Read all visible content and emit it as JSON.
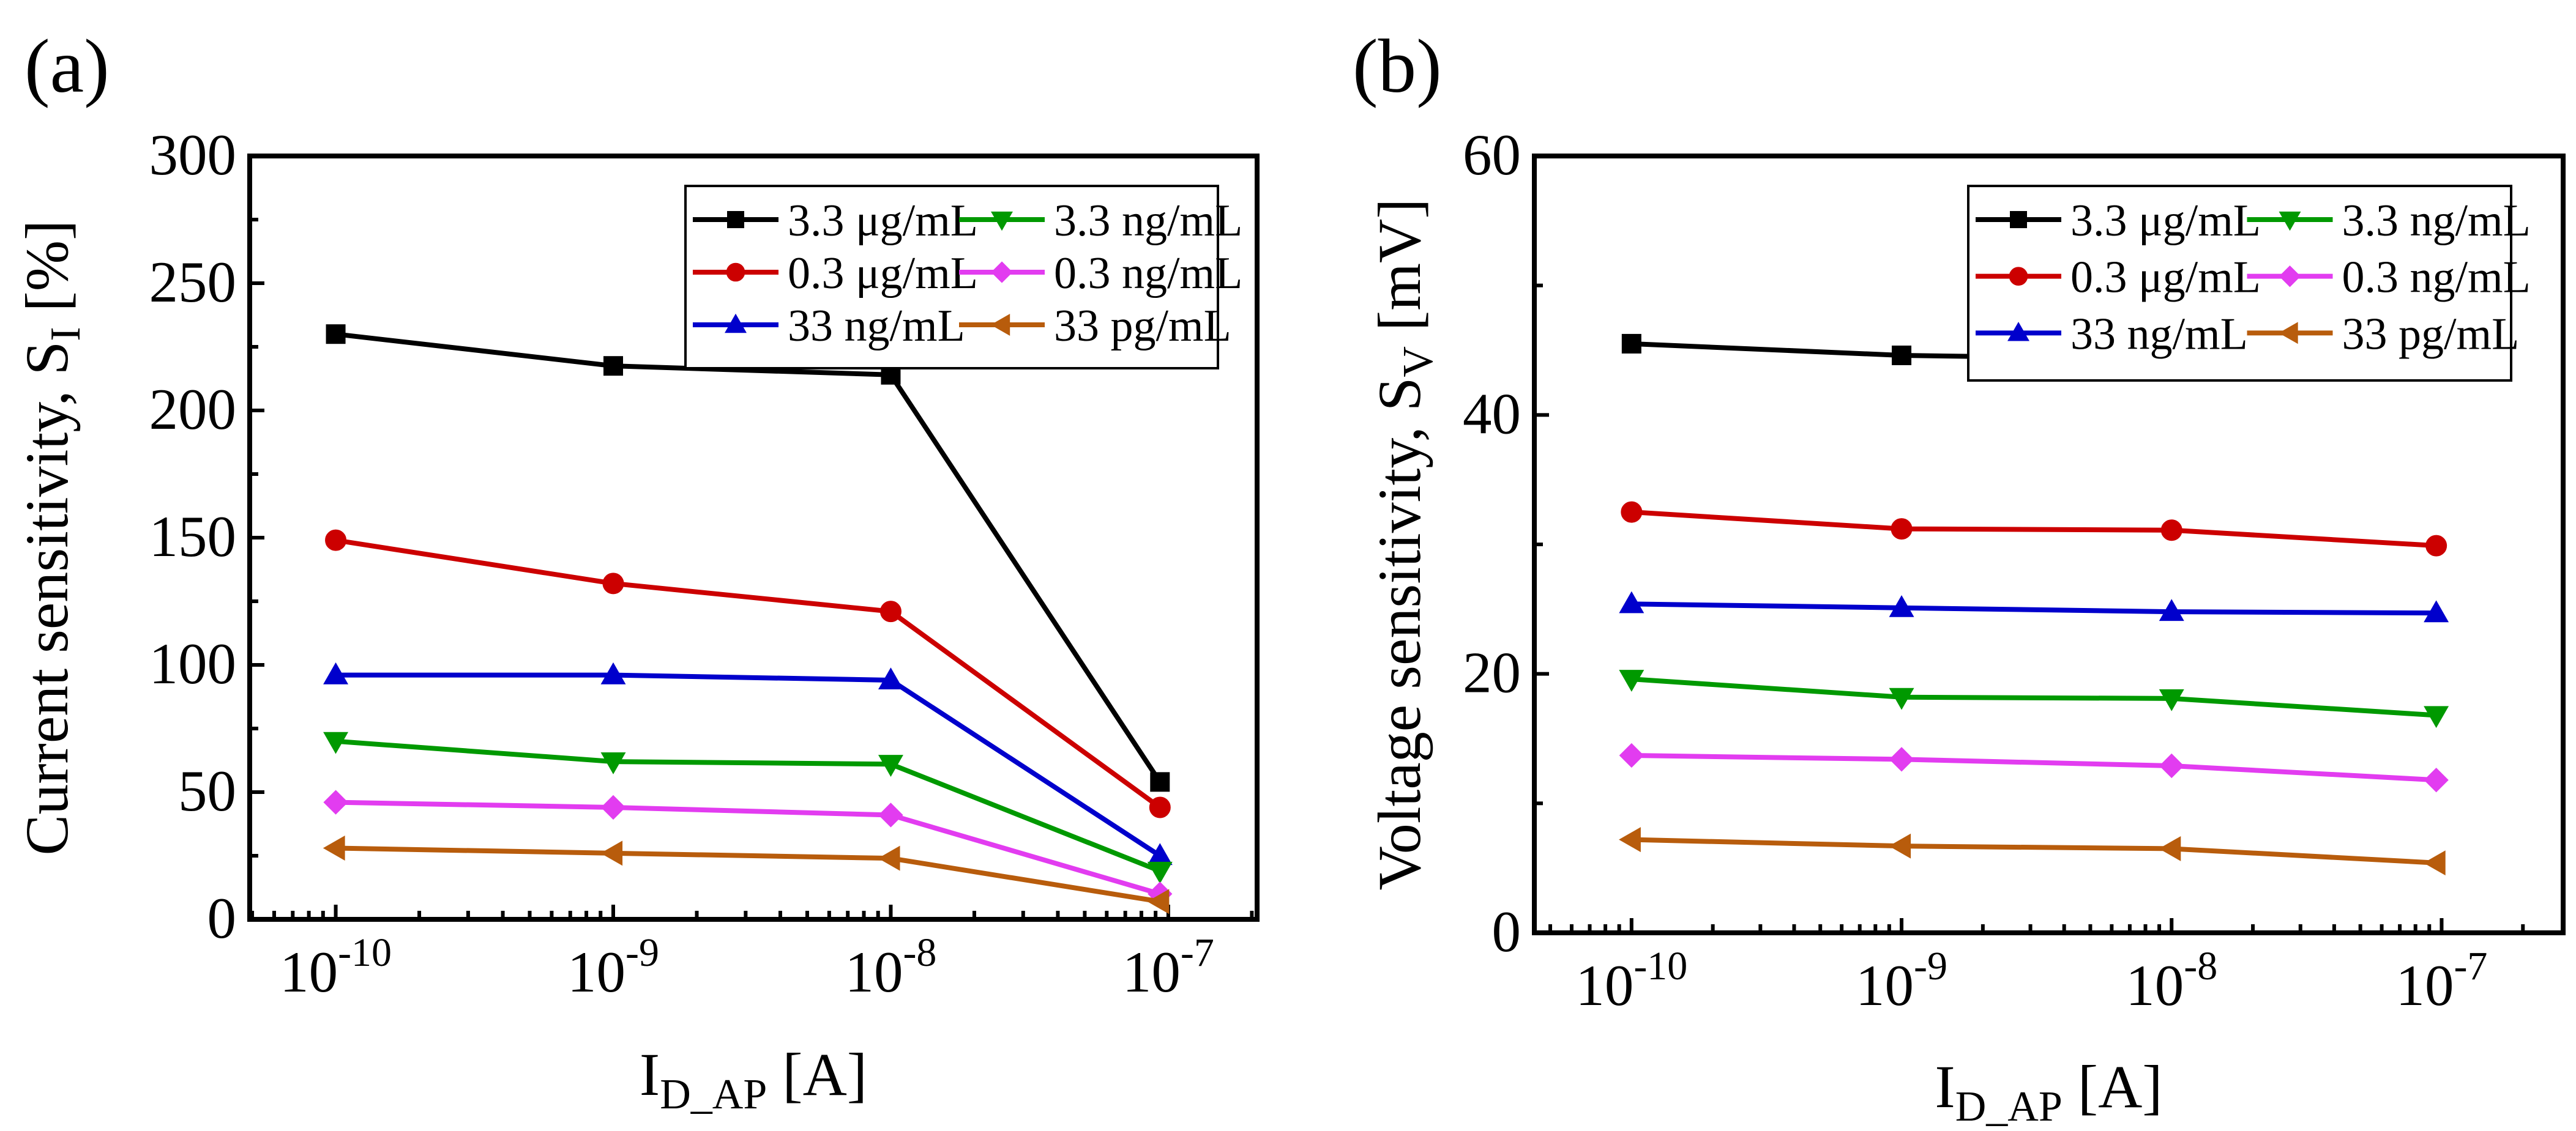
{
  "chart_data": [
    {
      "type": "line",
      "panel_label": "(a)",
      "xlabel": {
        "main": "I",
        "sub": "D_AP",
        "unit": " [A]"
      },
      "ylabel": {
        "main": "Current sensitivity, S",
        "sub": "I",
        "unit": " [%]"
      },
      "xscale": "log",
      "xlim_log10": [
        -10.31,
        -6.68
      ],
      "ylim": [
        0,
        300
      ],
      "yticks": [
        0,
        50,
        100,
        150,
        200,
        250,
        300
      ],
      "xtick_labels": [
        {
          "base": "10",
          "exp": "-10"
        },
        {
          "base": "10",
          "exp": "-9"
        },
        {
          "base": "10",
          "exp": "-8"
        },
        {
          "base": "10",
          "exp": "-7"
        }
      ],
      "xtick_log10": [
        -10,
        -9,
        -8,
        -7
      ],
      "x_log10": [
        -10,
        -9,
        -8,
        -7.03
      ],
      "legend_position": "top-right",
      "series": [
        {
          "name": "3.3 μg/mL",
          "color": "#000000",
          "marker": "square",
          "values": [
            230,
            217.5,
            214,
            54
          ]
        },
        {
          "name": "0.3 μg/mL",
          "color": "#cc0000",
          "marker": "circle",
          "values": [
            149,
            132,
            121,
            44
          ]
        },
        {
          "name": "33 ng/mL",
          "color": "#0000cc",
          "marker": "triangle-up",
          "values": [
            96,
            96,
            94,
            25
          ]
        },
        {
          "name": "3.3 ng/mL",
          "color": "#009900",
          "marker": "triangle-down",
          "values": [
            70,
            62,
            61,
            19
          ]
        },
        {
          "name": "0.3 ng/mL",
          "color": "#e23cf0",
          "marker": "diamond",
          "values": [
            46,
            44,
            41,
            10
          ]
        },
        {
          "name": "33 pg/mL",
          "color": "#b85c0c",
          "marker": "triangle-left",
          "values": [
            28,
            26,
            24,
            7
          ]
        }
      ]
    },
    {
      "type": "line",
      "panel_label": "(b)",
      "xlabel": {
        "main": "I",
        "sub": "D_AP",
        "unit": " [A]"
      },
      "ylabel": {
        "main": "Voltage sensitivity, S",
        "sub": "V",
        "unit": " [mV]"
      },
      "xscale": "log",
      "xlim_log10": [
        -10.36,
        -6.55
      ],
      "ylim": [
        0,
        60
      ],
      "yticks": [
        0,
        20,
        40,
        60
      ],
      "xtick_labels": [
        {
          "base": "10",
          "exp": "-10"
        },
        {
          "base": "10",
          "exp": "-9"
        },
        {
          "base": "10",
          "exp": "-8"
        },
        {
          "base": "10",
          "exp": "-7"
        }
      ],
      "xtick_log10": [
        -10,
        -9,
        -8,
        -7
      ],
      "x_log10": [
        -10,
        -9,
        -8,
        -7.02
      ],
      "legend_position": "top-right",
      "series": [
        {
          "name": "3.3 μg/mL",
          "color": "#000000",
          "marker": "square",
          "values": [
            45.5,
            44.6,
            44.3,
            44.2
          ]
        },
        {
          "name": "0.3 μg/mL",
          "color": "#cc0000",
          "marker": "circle",
          "values": [
            32.5,
            31.2,
            31.1,
            29.9
          ]
        },
        {
          "name": "33 ng/mL",
          "color": "#0000cc",
          "marker": "triangle-up",
          "values": [
            25.4,
            25.1,
            24.8,
            24.7
          ]
        },
        {
          "name": "3.3 ng/mL",
          "color": "#009900",
          "marker": "triangle-down",
          "values": [
            19.6,
            18.2,
            18.1,
            16.8
          ]
        },
        {
          "name": "0.3 ng/mL",
          "color": "#e23cf0",
          "marker": "diamond",
          "values": [
            13.7,
            13.4,
            12.9,
            11.8
          ]
        },
        {
          "name": "33 pg/mL",
          "color": "#b85c0c",
          "marker": "triangle-left",
          "values": [
            7.2,
            6.7,
            6.5,
            5.4
          ]
        }
      ]
    }
  ]
}
